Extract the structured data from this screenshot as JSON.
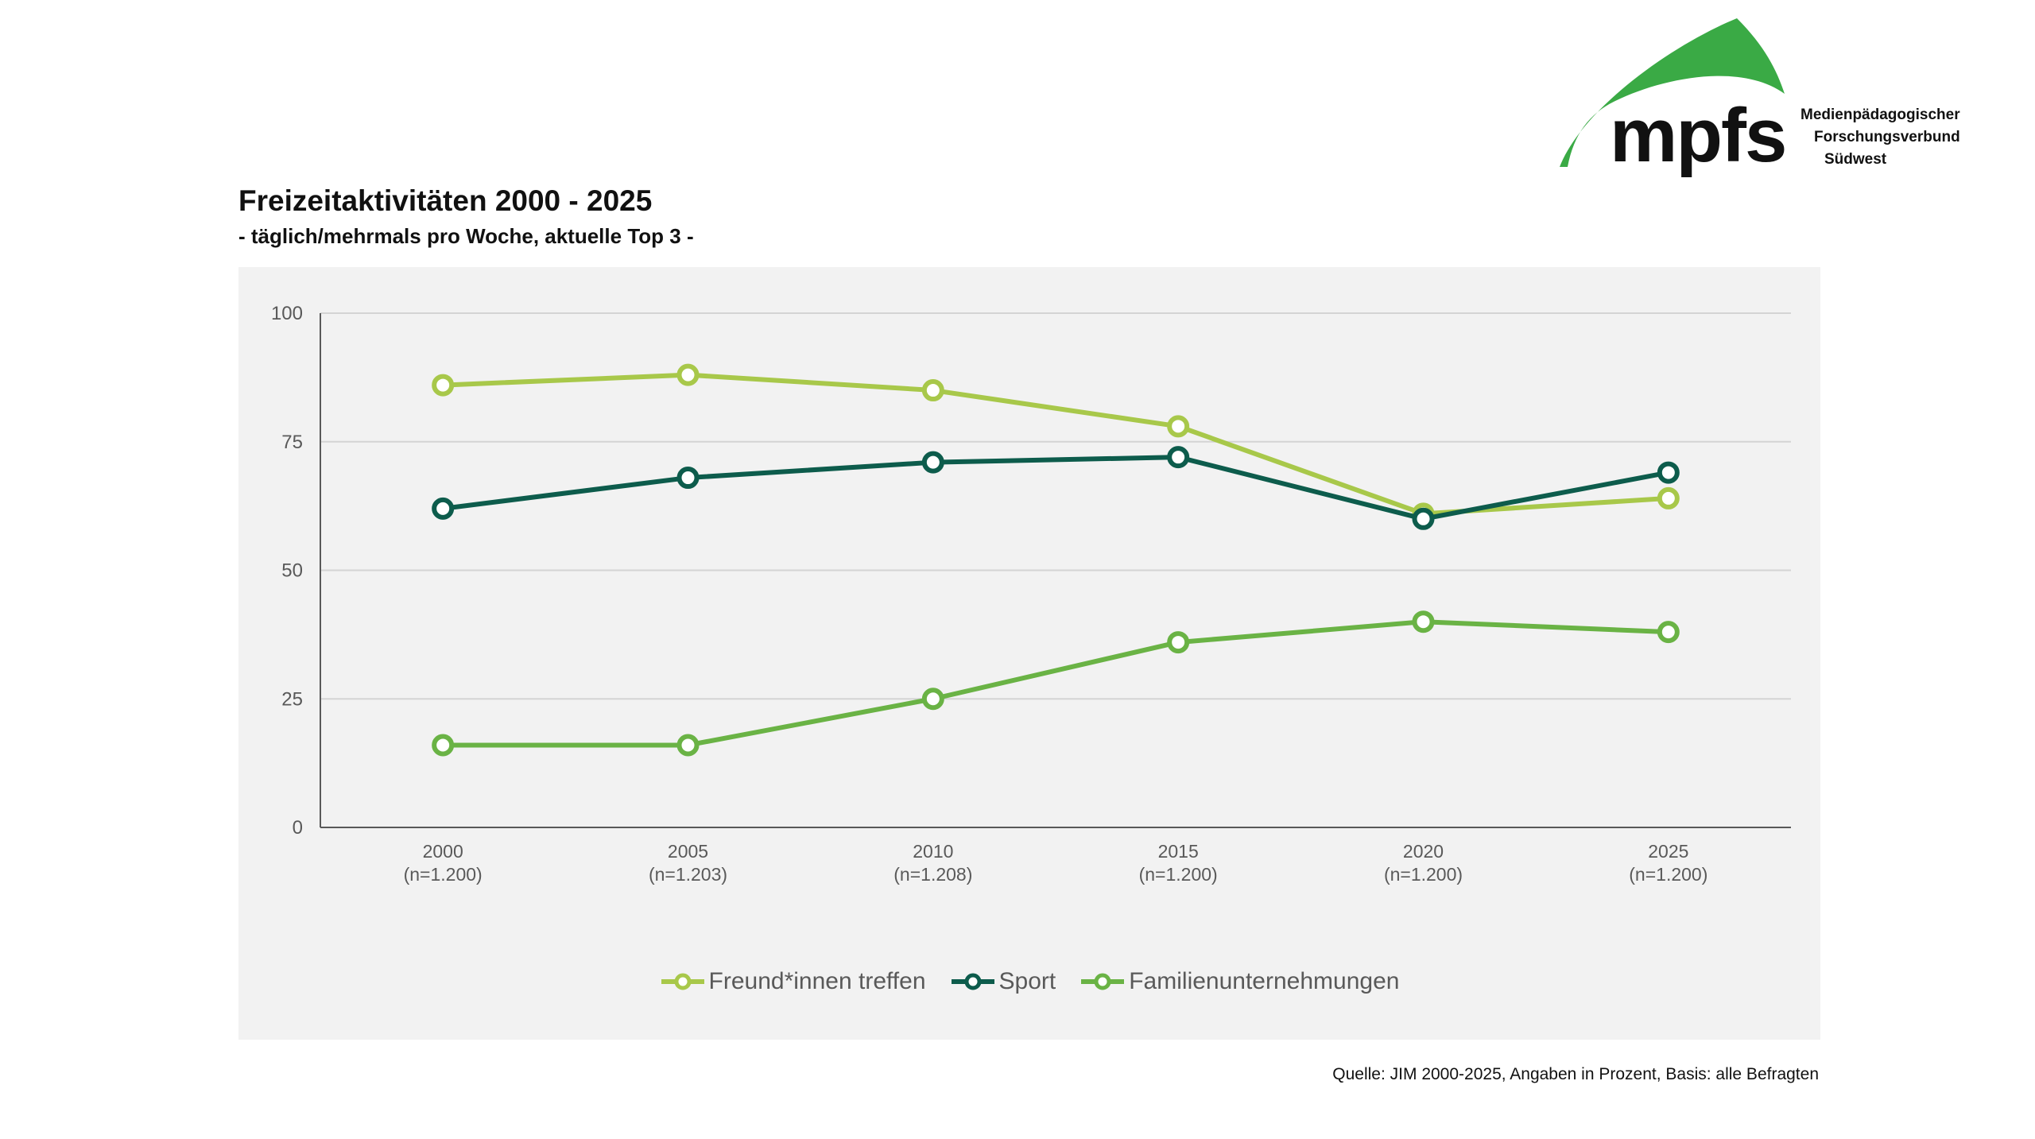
{
  "title": "Freizeitaktivitäten 2000 - 2025",
  "subtitle": "- täglich/mehrmals pro Woche, aktuelle Top 3 -",
  "logo": {
    "wordmark": "mpfs",
    "line1": "Medienpädagogischer",
    "line2": "Forschungsverbund",
    "line3": "Südwest",
    "color": "#3aaa45"
  },
  "source": "Quelle: JIM 2000-2025, Angaben in Prozent, Basis: alle Befragten",
  "chart_data": {
    "type": "line",
    "title": "Freizeitaktivitäten 2000 - 2025",
    "categories": [
      "2000",
      "2005",
      "2010",
      "2015",
      "2020",
      "2025"
    ],
    "sample_sizes": [
      "(n=1.200)",
      "(n=1.203)",
      "(n=1.208)",
      "(n=1.200)",
      "(n=1.200)",
      "(n=1.200)"
    ],
    "ylim": [
      0,
      100
    ],
    "yticks": [
      0,
      25,
      50,
      75,
      100
    ],
    "grid": true,
    "legend_position": "bottom",
    "series": [
      {
        "name": "Freund*innen treffen",
        "color": "#a8c84a",
        "values": [
          86,
          88,
          85,
          78,
          61,
          64
        ]
      },
      {
        "name": "Sport",
        "color": "#0d5c4c",
        "values": [
          62,
          68,
          71,
          72,
          60,
          69
        ]
      },
      {
        "name": "Familienunternehmungen",
        "color": "#6ab345",
        "values": [
          16,
          16,
          25,
          36,
          40,
          38
        ]
      }
    ]
  }
}
